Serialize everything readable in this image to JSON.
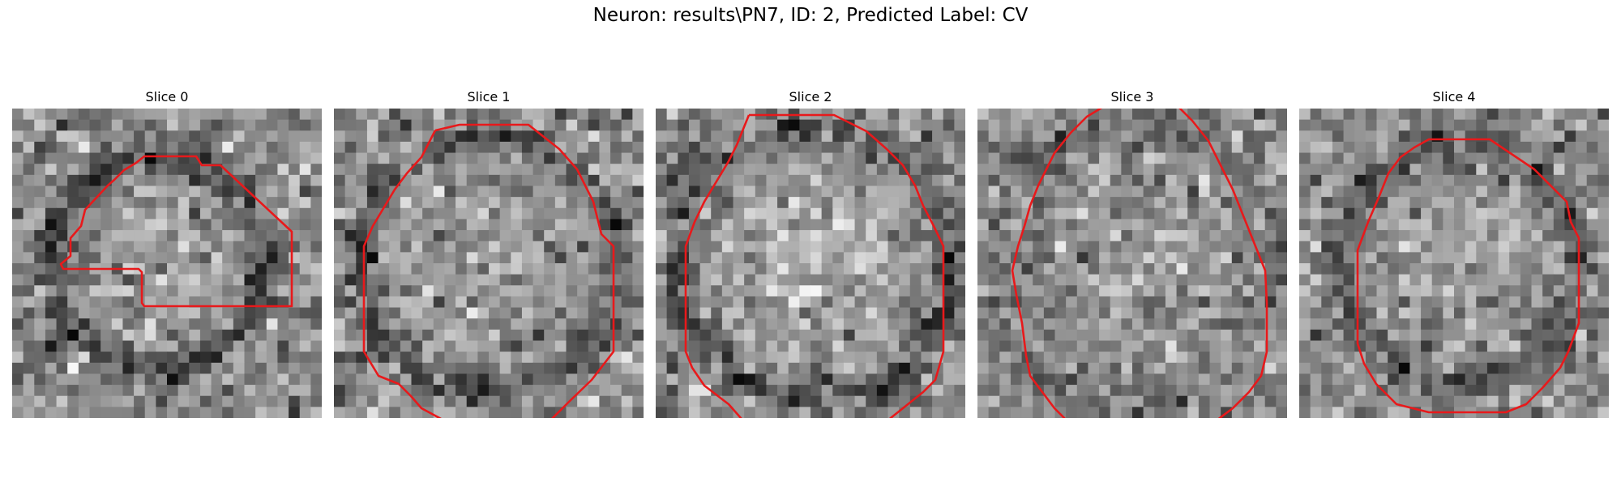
{
  "figure": {
    "title": "Neuron: results\\PN7, ID: 2, Predicted Label: CV"
  },
  "colors": {
    "contour": "#e8191b",
    "background": "#ffffff"
  },
  "panels": [
    {
      "title": "Slice 0"
    },
    {
      "title": "Slice 1"
    },
    {
      "title": "Slice 2"
    },
    {
      "title": "Slice 3"
    },
    {
      "title": "Slice 4"
    }
  ]
}
